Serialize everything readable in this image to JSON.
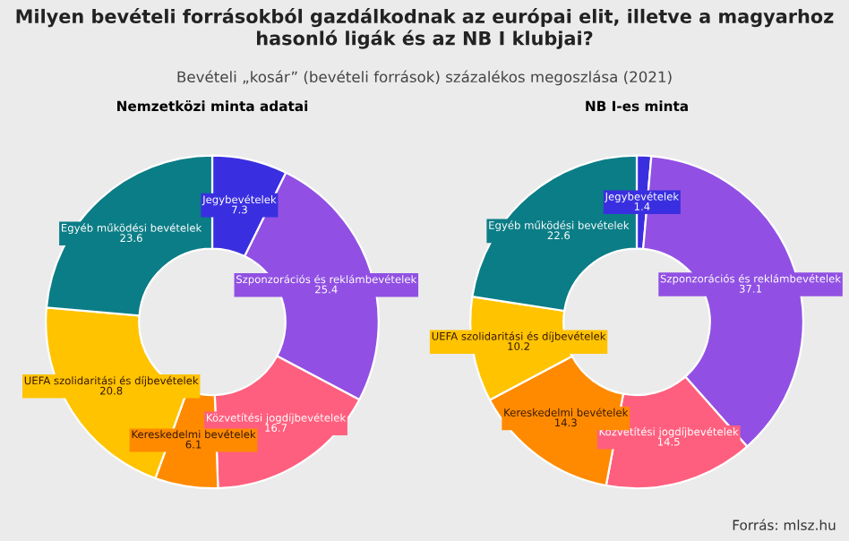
{
  "chart_data": [
    {
      "type": "donut",
      "title": "Milyen bevételi forrásokból gazdálkodnak az európai elit, illetve a magyarhoz hasonló ligák és az NB I klubjai?",
      "subtitle": "Bevételi „kosár” (bevételi források) százalékos megoszlása (2021)",
      "xlabel": "Nemzetközi minta adatai",
      "categories": [
        "Jegybevételek",
        "Szponzorációs és reklámbevételek",
        "Közvetítési jogdíjbevételek",
        "Kereskedelmi bevételek",
        "UEFA szolidaritási és díjbevételek",
        "Egyéb működési bevételek"
      ],
      "values": [
        7.3,
        25.4,
        16.7,
        6.1,
        20.8,
        23.6
      ],
      "colors": [
        "#3a2fe0",
        "#9150e3",
        "#ff5f7e",
        "#ff8a00",
        "#ffc300",
        "#0b7d86"
      ],
      "data_labels": true
    },
    {
      "type": "donut",
      "xlabel": "NB I-es minta",
      "categories": [
        "Jegybevételek",
        "Szponzorációs és reklámbevételek",
        "Közvetítési jogdíjbevételek",
        "Kereskedelmi bevételek",
        "UEFA szolidaritási és díjbevételek",
        "Egyéb működési bevételek"
      ],
      "values": [
        1.4,
        37.1,
        14.5,
        14.3,
        10.2,
        22.6
      ],
      "colors": [
        "#3a2fe0",
        "#9150e3",
        "#ff5f7e",
        "#ff8a00",
        "#ffc300",
        "#0b7d86"
      ],
      "data_labels": true,
      "annotations": [
        "Forrás: mlsz.hu"
      ]
    }
  ]
}
